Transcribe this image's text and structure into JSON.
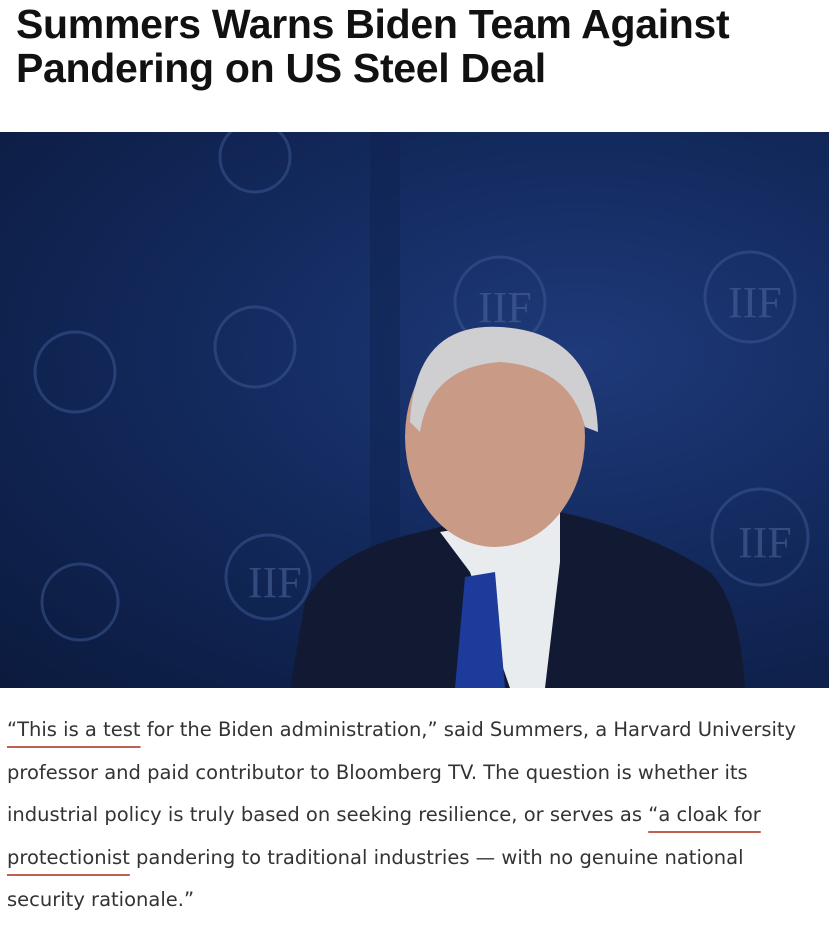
{
  "headline": "Summers Warns Biden Team Against Pandering on US Steel Deal",
  "photo": {
    "logo_text": "IIF"
  },
  "paragraph": {
    "q1_underlined": "“This is a test",
    "q1_rest": " for the Biden administration,” said Summers, a Harvard University professor and paid contributor to Bloomberg TV. The question is whether its industrial policy is truly based on seeking resilience, or serves as ",
    "q2_underlined": "“a cloak for protectionist",
    "q2_rest": " pandering to traditional industries — with no genuine national security rationale.”"
  },
  "colors": {
    "underline": "#c0604f",
    "backdrop": "#132a5e",
    "text": "#333333"
  }
}
